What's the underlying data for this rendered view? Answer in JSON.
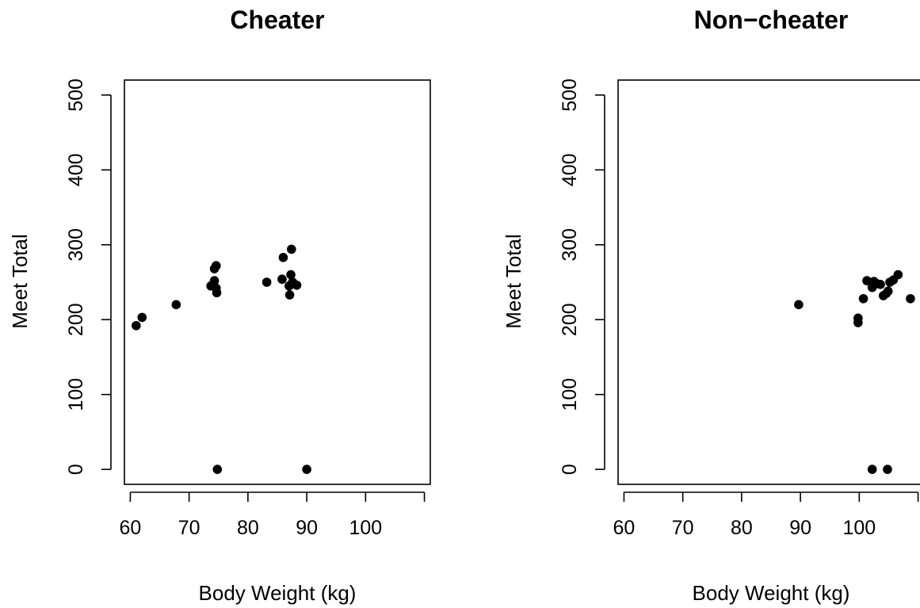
{
  "chart_data": [
    {
      "type": "scatter",
      "title": "Cheater",
      "xlabel": "Body Weight (kg)",
      "ylabel": "Meet Total",
      "xlim": [
        59,
        111
      ],
      "ylim": [
        -20,
        520
      ],
      "xticks": [
        60,
        70,
        80,
        90,
        100,
        110
      ],
      "xtick_labels": [
        "60",
        "70",
        "80",
        "90",
        "100",
        ""
      ],
      "yticks": [
        0,
        100,
        200,
        300,
        400,
        500
      ],
      "ytick_labels": [
        "0",
        "100",
        "200",
        "300",
        "400",
        "500"
      ],
      "grid": false,
      "points": [
        {
          "x": 61.0,
          "y": 192
        },
        {
          "x": 62.0,
          "y": 203
        },
        {
          "x": 67.8,
          "y": 220
        },
        {
          "x": 73.7,
          "y": 245
        },
        {
          "x": 74.3,
          "y": 252
        },
        {
          "x": 74.3,
          "y": 268
        },
        {
          "x": 74.6,
          "y": 272
        },
        {
          "x": 74.6,
          "y": 242
        },
        {
          "x": 74.7,
          "y": 236
        },
        {
          "x": 74.8,
          "y": 0
        },
        {
          "x": 83.2,
          "y": 250
        },
        {
          "x": 85.8,
          "y": 254
        },
        {
          "x": 86.0,
          "y": 283
        },
        {
          "x": 87.0,
          "y": 245
        },
        {
          "x": 87.1,
          "y": 233
        },
        {
          "x": 87.3,
          "y": 260
        },
        {
          "x": 87.4,
          "y": 294
        },
        {
          "x": 87.6,
          "y": 250
        },
        {
          "x": 88.3,
          "y": 246
        },
        {
          "x": 90.0,
          "y": 0
        }
      ]
    },
    {
      "type": "scatter",
      "title": "Non−cheater",
      "xlabel": "Body Weight (kg)",
      "ylabel": "Meet Total",
      "xlim": [
        59,
        111
      ],
      "ylim": [
        -20,
        520
      ],
      "xticks": [
        60,
        70,
        80,
        90,
        100,
        110
      ],
      "xtick_labels": [
        "60",
        "70",
        "80",
        "90",
        "100",
        ""
      ],
      "yticks": [
        0,
        100,
        200,
        300,
        400,
        500
      ],
      "ytick_labels": [
        "0",
        "100",
        "200",
        "300",
        "400",
        "500"
      ],
      "grid": false,
      "points": [
        {
          "x": 89.7,
          "y": 220
        },
        {
          "x": 99.8,
          "y": 196
        },
        {
          "x": 99.8,
          "y": 202
        },
        {
          "x": 100.7,
          "y": 228
        },
        {
          "x": 101.3,
          "y": 252
        },
        {
          "x": 102.2,
          "y": 243
        },
        {
          "x": 102.5,
          "y": 251
        },
        {
          "x": 103.0,
          "y": 248
        },
        {
          "x": 103.6,
          "y": 247
        },
        {
          "x": 104.1,
          "y": 232
        },
        {
          "x": 104.6,
          "y": 235
        },
        {
          "x": 104.9,
          "y": 238
        },
        {
          "x": 105.2,
          "y": 250
        },
        {
          "x": 105.8,
          "y": 253
        },
        {
          "x": 106.6,
          "y": 260
        },
        {
          "x": 108.7,
          "y": 228
        },
        {
          "x": 102.2,
          "y": 0
        },
        {
          "x": 104.8,
          "y": 0
        }
      ]
    }
  ]
}
